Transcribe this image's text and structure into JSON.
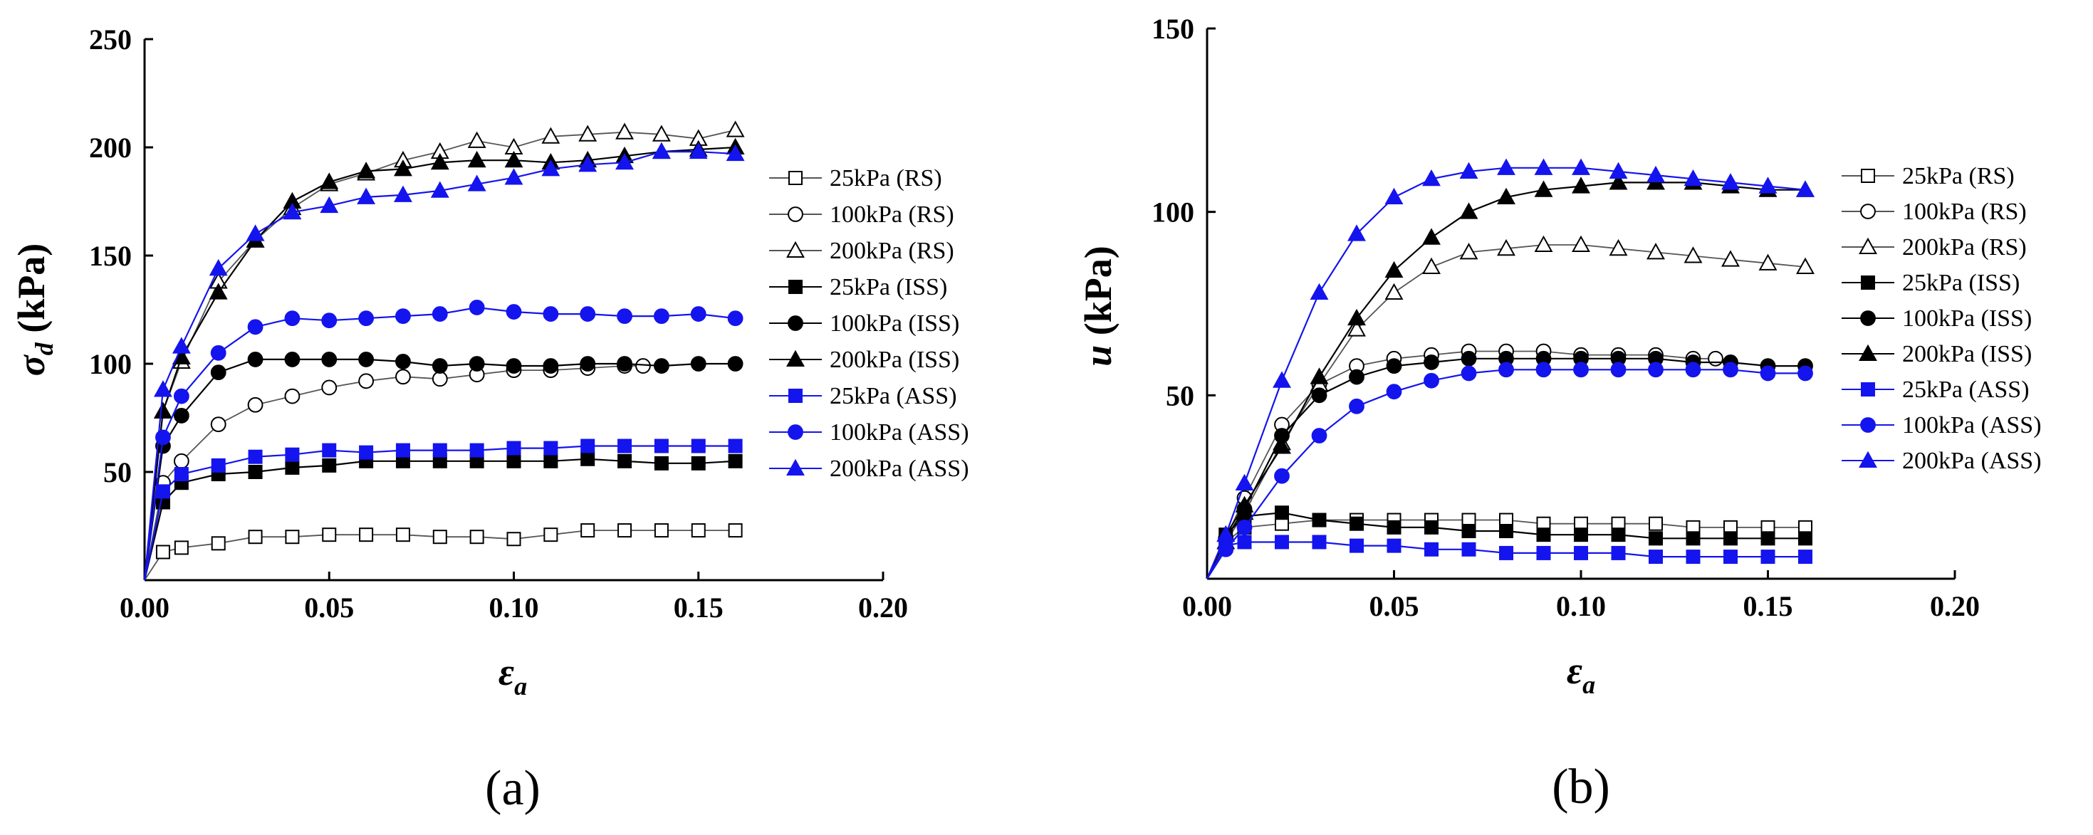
{
  "chart_data": [
    {
      "type": "line",
      "panel_label": "(a)",
      "ylabel_symbol": "σ",
      "ylabel_sub": "d",
      "ylabel_unit": " (kPa)",
      "xlabel_symbol": "ε",
      "xlabel_sub": "a",
      "xlim": [
        0,
        0.2
      ],
      "ylim": [
        0,
        250
      ],
      "xticks": [
        0,
        0.05,
        0.1,
        0.15,
        0.2
      ],
      "xtick_labels": [
        "0.00",
        "0.05",
        "0.10",
        "0.15",
        "0.20"
      ],
      "yticks": [
        50,
        100,
        150,
        200,
        250
      ],
      "ytick_labels": [
        "50",
        "100",
        "150",
        "200",
        "250"
      ],
      "legend_position": "right",
      "series": [
        {
          "name": "25kPa (RS)",
          "marker": "square",
          "fill": "none",
          "color": "#000000",
          "line_color": "#555555",
          "x": [
            0,
            0.005,
            0.01,
            0.02,
            0.03,
            0.04,
            0.05,
            0.06,
            0.07,
            0.08,
            0.09,
            0.1,
            0.11,
            0.12,
            0.13,
            0.14,
            0.15,
            0.16
          ],
          "y": [
            0,
            13,
            15,
            17,
            20,
            20,
            21,
            21,
            21,
            20,
            20,
            19,
            21,
            23,
            23,
            23,
            23,
            23
          ]
        },
        {
          "name": "100kPa (RS)",
          "marker": "circle",
          "fill": "none",
          "color": "#000000",
          "line_color": "#555555",
          "x": [
            0,
            0.005,
            0.01,
            0.02,
            0.03,
            0.04,
            0.05,
            0.06,
            0.07,
            0.08,
            0.09,
            0.1,
            0.11,
            0.12,
            0.13,
            0.135
          ],
          "y": [
            0,
            45,
            55,
            72,
            81,
            85,
            89,
            92,
            94,
            93,
            95,
            97,
            97,
            98,
            99,
            99
          ]
        },
        {
          "name": "200kPa (RS)",
          "marker": "triangle",
          "fill": "none",
          "color": "#000000",
          "line_color": "#555555",
          "x": [
            0,
            0.005,
            0.01,
            0.02,
            0.03,
            0.04,
            0.05,
            0.06,
            0.07,
            0.08,
            0.09,
            0.1,
            0.11,
            0.12,
            0.13,
            0.14,
            0.15,
            0.16
          ],
          "y": [
            0,
            78,
            101,
            138,
            157,
            172,
            183,
            188,
            194,
            198,
            203,
            200,
            205,
            206,
            207,
            206,
            204,
            208
          ]
        },
        {
          "name": "25kPa (ISS)",
          "marker": "square",
          "fill": "solid",
          "color": "#000000",
          "line_color": "#000000",
          "x": [
            0,
            0.005,
            0.01,
            0.02,
            0.03,
            0.04,
            0.05,
            0.06,
            0.07,
            0.08,
            0.09,
            0.1,
            0.11,
            0.12,
            0.13,
            0.14,
            0.15,
            0.16
          ],
          "y": [
            0,
            36,
            45,
            49,
            50,
            52,
            53,
            55,
            55,
            55,
            55,
            55,
            55,
            56,
            55,
            54,
            54,
            55
          ]
        },
        {
          "name": "100kPa (ISS)",
          "marker": "circle",
          "fill": "solid",
          "color": "#000000",
          "line_color": "#000000",
          "x": [
            0,
            0.005,
            0.01,
            0.02,
            0.03,
            0.04,
            0.05,
            0.06,
            0.07,
            0.08,
            0.09,
            0.1,
            0.11,
            0.12,
            0.13,
            0.14,
            0.15,
            0.16
          ],
          "y": [
            0,
            62,
            76,
            96,
            102,
            102,
            102,
            102,
            101,
            99,
            100,
            99,
            99,
            100,
            100,
            99,
            100,
            100
          ]
        },
        {
          "name": "200kPa (ISS)",
          "marker": "triangle",
          "fill": "solid",
          "color": "#000000",
          "line_color": "#000000",
          "x": [
            0,
            0.005,
            0.01,
            0.02,
            0.03,
            0.04,
            0.05,
            0.06,
            0.07,
            0.08,
            0.09,
            0.1,
            0.11,
            0.12,
            0.13,
            0.14,
            0.15,
            0.16
          ],
          "y": [
            0,
            78,
            103,
            133,
            157,
            175,
            184,
            189,
            190,
            193,
            194,
            194,
            193,
            194,
            196,
            198,
            199,
            200
          ]
        },
        {
          "name": "25kPa (ASS)",
          "marker": "square",
          "fill": "solid",
          "color": "#1414ee",
          "line_color": "#1414ee",
          "x": [
            0,
            0.005,
            0.01,
            0.02,
            0.03,
            0.04,
            0.05,
            0.06,
            0.07,
            0.08,
            0.09,
            0.1,
            0.11,
            0.12,
            0.13,
            0.14,
            0.15,
            0.16
          ],
          "y": [
            0,
            41,
            49,
            53,
            57,
            58,
            60,
            59,
            60,
            60,
            60,
            61,
            61,
            62,
            62,
            62,
            62,
            62
          ]
        },
        {
          "name": "100kPa (ASS)",
          "marker": "circle",
          "fill": "solid",
          "color": "#1414ee",
          "line_color": "#1414ee",
          "x": [
            0,
            0.005,
            0.01,
            0.02,
            0.03,
            0.04,
            0.05,
            0.06,
            0.07,
            0.08,
            0.09,
            0.1,
            0.11,
            0.12,
            0.13,
            0.14,
            0.15,
            0.16
          ],
          "y": [
            0,
            66,
            85,
            105,
            117,
            121,
            120,
            121,
            122,
            123,
            126,
            124,
            123,
            123,
            122,
            122,
            123,
            121
          ]
        },
        {
          "name": "200kPa (ASS)",
          "marker": "triangle",
          "fill": "solid",
          "color": "#1414ee",
          "line_color": "#1414ee",
          "x": [
            0,
            0.005,
            0.01,
            0.02,
            0.03,
            0.04,
            0.05,
            0.06,
            0.07,
            0.08,
            0.09,
            0.1,
            0.11,
            0.12,
            0.13,
            0.14,
            0.15,
            0.16
          ],
          "y": [
            0,
            88,
            108,
            144,
            160,
            170,
            173,
            177,
            178,
            180,
            183,
            186,
            190,
            192,
            193,
            198,
            198,
            197
          ]
        }
      ]
    },
    {
      "type": "line",
      "panel_label": "(b)",
      "ylabel_symbol": "u",
      "ylabel_sub": "",
      "ylabel_unit": " (kPa)",
      "xlabel_symbol": "ε",
      "xlabel_sub": "a",
      "xlim": [
        0,
        0.2
      ],
      "ylim": [
        0,
        150
      ],
      "xticks": [
        0,
        0.05,
        0.1,
        0.15,
        0.2
      ],
      "xtick_labels": [
        "0.00",
        "0.05",
        "0.10",
        "0.15",
        "0.20"
      ],
      "yticks": [
        50,
        100,
        150
      ],
      "ytick_labels": [
        "50",
        "100",
        "150"
      ],
      "legend_position": "right",
      "series": [
        {
          "name": "25kPa (RS)",
          "marker": "square",
          "fill": "none",
          "color": "#000000",
          "line_color": "#555555",
          "x": [
            0,
            0.005,
            0.01,
            0.02,
            0.03,
            0.04,
            0.05,
            0.06,
            0.07,
            0.08,
            0.09,
            0.1,
            0.11,
            0.12,
            0.13,
            0.14,
            0.15,
            0.16
          ],
          "y": [
            0,
            10,
            14,
            15,
            16,
            16,
            16,
            16,
            16,
            16,
            15,
            15,
            15,
            15,
            14,
            14,
            14,
            14
          ]
        },
        {
          "name": "100kPa (RS)",
          "marker": "circle",
          "fill": "none",
          "color": "#000000",
          "line_color": "#555555",
          "x": [
            0,
            0.005,
            0.01,
            0.02,
            0.03,
            0.04,
            0.05,
            0.06,
            0.07,
            0.08,
            0.09,
            0.1,
            0.11,
            0.12,
            0.13,
            0.136
          ],
          "y": [
            0,
            11,
            22,
            42,
            53,
            58,
            60,
            61,
            62,
            62,
            62,
            61,
            61,
            61,
            60,
            60
          ]
        },
        {
          "name": "200kPa (RS)",
          "marker": "triangle",
          "fill": "none",
          "color": "#000000",
          "line_color": "#555555",
          "x": [
            0,
            0.005,
            0.01,
            0.02,
            0.03,
            0.04,
            0.05,
            0.06,
            0.07,
            0.08,
            0.09,
            0.1,
            0.11,
            0.12,
            0.13,
            0.14,
            0.15,
            0.16
          ],
          "y": [
            0,
            10,
            18,
            37,
            53,
            68,
            78,
            85,
            89,
            90,
            91,
            91,
            90,
            89,
            88,
            87,
            86,
            85
          ]
        },
        {
          "name": "25kPa (ISS)",
          "marker": "square",
          "fill": "solid",
          "color": "#000000",
          "line_color": "#000000",
          "x": [
            0,
            0.005,
            0.01,
            0.02,
            0.03,
            0.04,
            0.05,
            0.06,
            0.07,
            0.08,
            0.09,
            0.1,
            0.11,
            0.12,
            0.13,
            0.14,
            0.15,
            0.16
          ],
          "y": [
            0,
            12,
            17,
            18,
            16,
            15,
            14,
            14,
            13,
            13,
            12,
            12,
            12,
            11,
            11,
            11,
            11,
            11
          ]
        },
        {
          "name": "100kPa (ISS)",
          "marker": "circle",
          "fill": "solid",
          "color": "#000000",
          "line_color": "#000000",
          "x": [
            0,
            0.005,
            0.01,
            0.02,
            0.03,
            0.04,
            0.05,
            0.06,
            0.07,
            0.08,
            0.09,
            0.1,
            0.11,
            0.12,
            0.13,
            0.14,
            0.15,
            0.16
          ],
          "y": [
            0,
            11,
            19,
            39,
            50,
            55,
            58,
            59,
            60,
            60,
            60,
            60,
            60,
            60,
            59,
            59,
            58,
            58
          ]
        },
        {
          "name": "200kPa (ISS)",
          "marker": "triangle",
          "fill": "solid",
          "color": "#000000",
          "line_color": "#000000",
          "x": [
            0,
            0.005,
            0.01,
            0.02,
            0.03,
            0.04,
            0.05,
            0.06,
            0.07,
            0.08,
            0.09,
            0.1,
            0.11,
            0.12,
            0.13,
            0.14,
            0.15,
            0.16
          ],
          "y": [
            0,
            12,
            20,
            36,
            55,
            71,
            84,
            93,
            100,
            104,
            106,
            107,
            108,
            108,
            108,
            107,
            106,
            106
          ]
        },
        {
          "name": "25kPa (ASS)",
          "marker": "square",
          "fill": "solid",
          "color": "#1414ee",
          "line_color": "#1414ee",
          "x": [
            0,
            0.005,
            0.01,
            0.02,
            0.03,
            0.04,
            0.05,
            0.06,
            0.07,
            0.08,
            0.09,
            0.1,
            0.11,
            0.12,
            0.13,
            0.14,
            0.15,
            0.16
          ],
          "y": [
            0,
            9,
            10,
            10,
            10,
            9,
            9,
            8,
            8,
            7,
            7,
            7,
            7,
            6,
            6,
            6,
            6,
            6
          ]
        },
        {
          "name": "100kPa (ASS)",
          "marker": "circle",
          "fill": "solid",
          "color": "#1414ee",
          "line_color": "#1414ee",
          "x": [
            0,
            0.005,
            0.01,
            0.02,
            0.03,
            0.04,
            0.05,
            0.06,
            0.07,
            0.08,
            0.09,
            0.1,
            0.11,
            0.12,
            0.13,
            0.14,
            0.15,
            0.16
          ],
          "y": [
            0,
            8,
            14,
            28,
            39,
            47,
            51,
            54,
            56,
            57,
            57,
            57,
            57,
            57,
            57,
            57,
            56,
            56
          ]
        },
        {
          "name": "200kPa (ASS)",
          "marker": "triangle",
          "fill": "solid",
          "color": "#1414ee",
          "line_color": "#1414ee",
          "x": [
            0,
            0.005,
            0.01,
            0.02,
            0.03,
            0.04,
            0.05,
            0.06,
            0.07,
            0.08,
            0.09,
            0.1,
            0.11,
            0.12,
            0.13,
            0.14,
            0.15,
            0.16
          ],
          "y": [
            0,
            12,
            26,
            54,
            78,
            94,
            104,
            109,
            111,
            112,
            112,
            112,
            111,
            110,
            109,
            108,
            107,
            106
          ]
        }
      ]
    }
  ]
}
